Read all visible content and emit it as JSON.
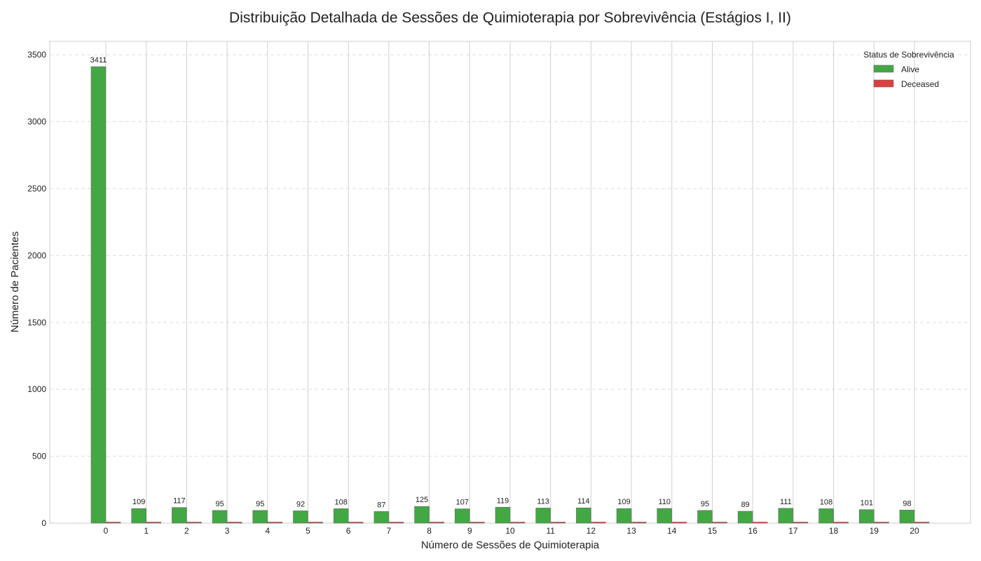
{
  "chart_data": {
    "type": "bar",
    "title": "Distribuição Detalhada de Sessões de Quimioterapia por Sobrevivência (Estágios I, II)",
    "xlabel": "Número de Sessões de Quimioterapia",
    "ylabel": "Número de Pacientes",
    "categories": [
      "0",
      "1",
      "2",
      "3",
      "4",
      "5",
      "6",
      "7",
      "8",
      "9",
      "10",
      "11",
      "12",
      "13",
      "14",
      "15",
      "16",
      "17",
      "18",
      "19",
      "20"
    ],
    "series": [
      {
        "name": "Alive",
        "color": "#43a843",
        "values": [
          3411,
          109,
          117,
          95,
          95,
          92,
          108,
          87,
          125,
          107,
          119,
          113,
          114,
          109,
          110,
          95,
          89,
          111,
          108,
          101,
          98
        ]
      },
      {
        "name": "Deceased",
        "color": "#d94040",
        "values": [
          0,
          0,
          0,
          0,
          0,
          0,
          0,
          0,
          0,
          0,
          0,
          0,
          0,
          0,
          0,
          0,
          0,
          0,
          0,
          0,
          0
        ]
      }
    ],
    "data_labels": [
      "3411",
      "109",
      "117",
      "95",
      "95",
      "92",
      "108",
      "87",
      "125",
      "107",
      "119",
      "113",
      "114",
      "109",
      "110",
      "95",
      "89",
      "111",
      "108",
      "101",
      "98"
    ],
    "ylim": [
      0,
      3600
    ],
    "yticks": [
      0,
      500,
      1000,
      1500,
      2000,
      2500,
      3000,
      3500
    ],
    "grid": true,
    "legend": {
      "title": "Status de Sobrevivência",
      "placement": "top-right"
    }
  }
}
